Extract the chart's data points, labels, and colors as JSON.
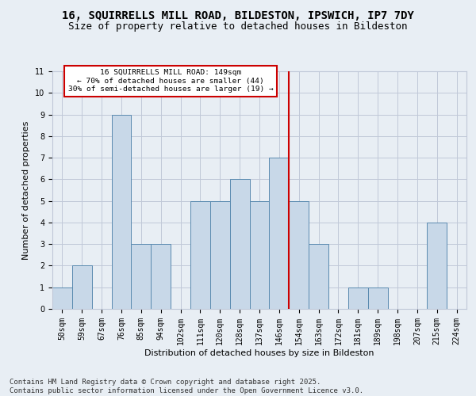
{
  "title1": "16, SQUIRRELLS MILL ROAD, BILDESTON, IPSWICH, IP7 7DY",
  "title2": "Size of property relative to detached houses in Bildeston",
  "xlabel": "Distribution of detached houses by size in Bildeston",
  "ylabel": "Number of detached properties",
  "categories": [
    "50sqm",
    "59sqm",
    "67sqm",
    "76sqm",
    "85sqm",
    "94sqm",
    "102sqm",
    "111sqm",
    "120sqm",
    "128sqm",
    "137sqm",
    "146sqm",
    "154sqm",
    "163sqm",
    "172sqm",
    "181sqm",
    "189sqm",
    "198sqm",
    "207sqm",
    "215sqm",
    "224sqm"
  ],
  "values": [
    1,
    2,
    0,
    9,
    3,
    3,
    0,
    5,
    5,
    6,
    5,
    7,
    5,
    3,
    0,
    1,
    1,
    0,
    0,
    4,
    0
  ],
  "bar_color": "#c8d8e8",
  "bar_edge_color": "#5a8ab0",
  "grid_color": "#c0c8d8",
  "background_color": "#e8eef4",
  "annotation_text": "16 SQUIRRELLS MILL ROAD: 149sqm\n← 70% of detached houses are smaller (44)\n30% of semi-detached houses are larger (19) →",
  "annotation_box_color": "#ffffff",
  "annotation_box_edge": "#cc0000",
  "vline_x_index": 11.5,
  "vline_color": "#cc0000",
  "ylim": [
    0,
    11
  ],
  "yticks": [
    0,
    1,
    2,
    3,
    4,
    5,
    6,
    7,
    8,
    9,
    10,
    11
  ],
  "footer": "Contains HM Land Registry data © Crown copyright and database right 2025.\nContains public sector information licensed under the Open Government Licence v3.0.",
  "title_fontsize": 10,
  "subtitle_fontsize": 9,
  "axis_label_fontsize": 8,
  "tick_fontsize": 7,
  "footer_fontsize": 6.5
}
